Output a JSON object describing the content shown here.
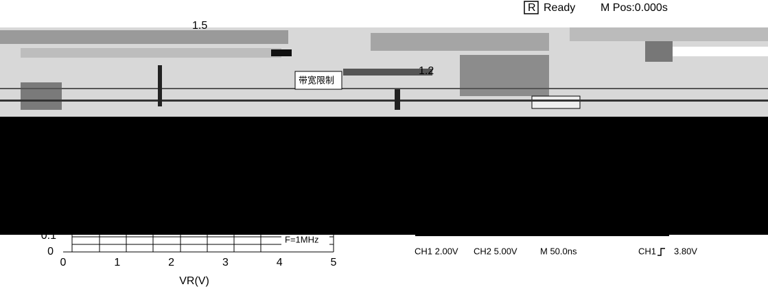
{
  "chart_panel": {
    "upper_labels": [
      "1.5",
      "1.2"
    ],
    "y_tick_labels": [
      "0.1",
      "0"
    ],
    "x_tick_labels": [
      "0",
      "1",
      "2",
      "3",
      "4",
      "5"
    ],
    "x_axis_label": "VR(V)",
    "annotation": "F=1MHz"
  },
  "scope_panel": {
    "mode_badge": "R",
    "status": "Ready",
    "position": "M Pos:0.000s",
    "menu_label": "带宽限制",
    "readouts": [
      "CH1 2.00V",
      "CH2 5.00V",
      "M 50.0ns",
      "CH1",
      "3.80V"
    ]
  }
}
